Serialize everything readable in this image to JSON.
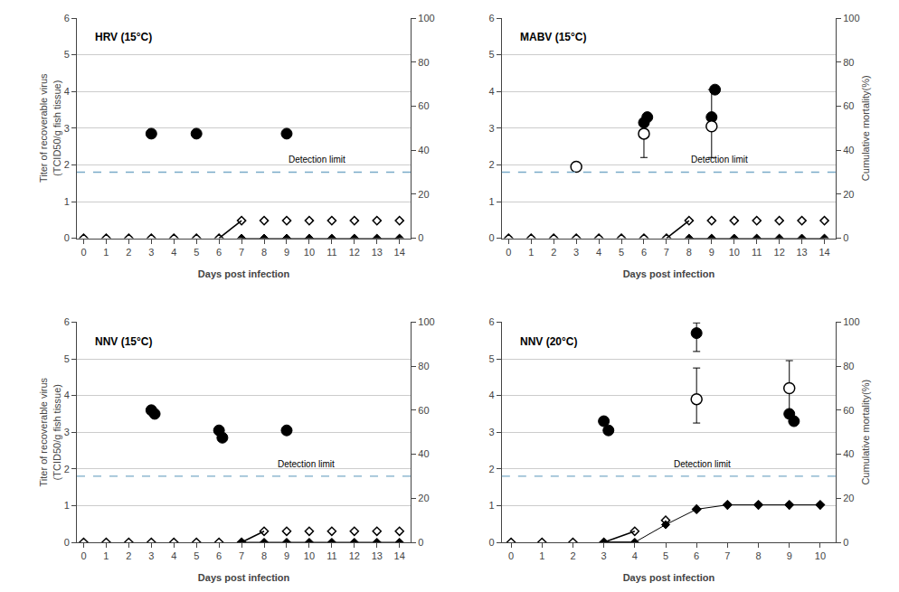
{
  "chart_data": [
    {
      "type": "scatter",
      "title": "HRV (15°C)",
      "xlabel": "Days post infection",
      "ylabel": "Titer of recoverable virus\n(TCID50/g fish tissue)",
      "xlim": [
        -0.3,
        14.5
      ],
      "xticks": [
        0,
        1,
        2,
        3,
        4,
        5,
        6,
        7,
        8,
        9,
        10,
        11,
        12,
        13,
        14
      ],
      "ylim": [
        0,
        6
      ],
      "yticks": [
        0,
        1,
        2,
        3,
        4,
        5,
        6
      ],
      "y2lim": [
        0,
        100
      ],
      "y2ticks": [
        0,
        20,
        40,
        60,
        80,
        100
      ],
      "grid": "y",
      "reference_lines": [
        {
          "y": 1.8,
          "color": "#7aaac8",
          "line_style": "dashed"
        }
      ],
      "annotations": [
        {
          "text": "Detection limit",
          "x": 9.0,
          "y": 1.95
        }
      ],
      "series": [
        {
          "axis": "y2",
          "type": "scatter",
          "marker": "diamond-open",
          "color": "black",
          "x": [
            0,
            1,
            2,
            3,
            4,
            5,
            6,
            7,
            8,
            9,
            10,
            11,
            12,
            13,
            14
          ],
          "values": [
            0,
            0,
            0,
            0,
            0,
            0,
            0,
            8,
            8,
            8,
            8,
            8,
            8,
            8,
            8
          ]
        },
        {
          "axis": "y2",
          "type": "line",
          "color": "black",
          "x": [
            6,
            7
          ],
          "values": [
            0,
            8
          ]
        },
        {
          "axis": "y2",
          "type": "line",
          "marker": "diamond",
          "color": "black",
          "x": [
            7,
            8,
            9,
            10,
            11,
            12,
            13,
            14
          ],
          "values": [
            0,
            0,
            0,
            0,
            0,
            0,
            0,
            0
          ]
        },
        {
          "type": "scatter",
          "marker": "circle",
          "color": "black",
          "x": [
            3,
            5,
            9
          ],
          "values": [
            2.85,
            2.85,
            2.85
          ],
          "yerr_low": [
            0.0,
            0.0,
            0.0
          ],
          "yerr_high": [
            0.0,
            0.0,
            0.0
          ]
        }
      ]
    },
    {
      "type": "scatter",
      "title": "MABV (15°C)",
      "xlabel": "Days post infection",
      "y2label": "Cumulative mortality(%)",
      "xlim": [
        -0.3,
        14.5
      ],
      "xticks": [
        0,
        1,
        2,
        3,
        4,
        5,
        6,
        7,
        8,
        9,
        10,
        11,
        12,
        13,
        14
      ],
      "ylim": [
        0,
        6
      ],
      "yticks": [
        0,
        1,
        2,
        3,
        4,
        5,
        6
      ],
      "y2lim": [
        0,
        100
      ],
      "y2ticks": [
        0,
        20,
        40,
        60,
        80,
        100
      ],
      "grid": "y",
      "reference_lines": [
        {
          "y": 1.8,
          "color": "#7aaac8",
          "line_style": "dashed"
        }
      ],
      "annotations": [
        {
          "text": "Detection limit",
          "x": 8.0,
          "y": 1.95
        }
      ],
      "series": [
        {
          "axis": "y2",
          "type": "scatter",
          "marker": "diamond-open",
          "color": "black",
          "x": [
            0,
            1,
            2,
            3,
            4,
            5,
            6,
            7,
            8,
            9,
            10,
            11,
            12,
            13,
            14
          ],
          "values": [
            0,
            0,
            0,
            0,
            0,
            0,
            0,
            0,
            8,
            8,
            8,
            8,
            8,
            8,
            8
          ]
        },
        {
          "axis": "y2",
          "type": "line",
          "color": "black",
          "x": [
            7,
            8
          ],
          "values": [
            0,
            8
          ]
        },
        {
          "axis": "y2",
          "type": "line",
          "marker": "diamond",
          "color": "black",
          "x": [
            8,
            9,
            10,
            11,
            12,
            13,
            14
          ],
          "values": [
            0,
            0,
            0,
            0,
            0,
            0,
            0
          ]
        },
        {
          "type": "scatter",
          "marker": "circle",
          "color": "black",
          "x": [
            6,
            6.15,
            9,
            9.15
          ],
          "values": [
            3.15,
            3.3,
            3.3,
            4.05
          ],
          "yerr_low": [
            0.0,
            0.0,
            0.0,
            0.0
          ],
          "yerr_high": [
            0.0,
            0.0,
            0.0,
            0.0
          ]
        },
        {
          "type": "scatter",
          "marker": "circle-open",
          "color": "black",
          "x": [
            3,
            6,
            9
          ],
          "values": [
            1.95,
            2.85,
            3.05
          ],
          "yerr_low": [
            0.0,
            0.65,
            0.85
          ],
          "yerr_high": [
            0.0,
            0.0,
            1.0
          ]
        }
      ]
    },
    {
      "type": "scatter",
      "title": "NNV (15°C)",
      "xlabel": "Days post infection",
      "ylabel": "Titer of recoverable virus\n(TCID50/g fish tissue)",
      "xlim": [
        -0.3,
        14.5
      ],
      "xticks": [
        0,
        1,
        2,
        3,
        4,
        5,
        6,
        7,
        8,
        9,
        10,
        11,
        12,
        13,
        14
      ],
      "ylim": [
        0,
        6
      ],
      "yticks": [
        0,
        1,
        2,
        3,
        4,
        5,
        6
      ],
      "y2lim": [
        0,
        100
      ],
      "y2ticks": [
        0,
        20,
        40,
        60,
        80,
        100
      ],
      "grid": "y",
      "reference_lines": [
        {
          "y": 1.8,
          "color": "#7aaac8",
          "line_style": "dashed"
        }
      ],
      "annotations": [
        {
          "text": "Detection limit",
          "x": 8.5,
          "y": 1.95
        }
      ],
      "series": [
        {
          "axis": "y2",
          "type": "scatter",
          "marker": "diamond-open",
          "color": "black",
          "x": [
            0,
            1,
            2,
            3,
            4,
            5,
            6,
            7,
            8,
            9,
            10,
            11,
            12,
            13,
            14
          ],
          "values": [
            0,
            0,
            0,
            0,
            0,
            0,
            0,
            0,
            5,
            5,
            5,
            5,
            5,
            5,
            5
          ]
        },
        {
          "axis": "y2",
          "type": "line",
          "color": "black",
          "x": [
            7,
            8
          ],
          "values": [
            0,
            5
          ]
        },
        {
          "axis": "y2",
          "type": "line",
          "marker": "diamond",
          "color": "black",
          "x": [
            7,
            8,
            9,
            10,
            11,
            12,
            13,
            14
          ],
          "values": [
            0,
            0,
            0,
            0,
            0,
            0,
            0,
            0
          ]
        },
        {
          "type": "scatter",
          "marker": "circle",
          "color": "black",
          "x": [
            3,
            3.15,
            6,
            6.15,
            9
          ],
          "values": [
            3.6,
            3.5,
            3.05,
            2.85,
            3.05
          ],
          "yerr_low": [
            0.0,
            0.0,
            0.0,
            0.0,
            0.0
          ],
          "yerr_high": [
            0.0,
            0.0,
            0.0,
            0.0,
            0.0
          ]
        }
      ]
    },
    {
      "type": "scatter",
      "title": "NNV (20°C)",
      "xlabel": "Days post infection",
      "y2label": "Cumulative mortality(%)",
      "xlim": [
        -0.3,
        10.5
      ],
      "xticks": [
        0,
        1,
        2,
        3,
        4,
        5,
        6,
        7,
        8,
        9,
        10
      ],
      "ylim": [
        0,
        6
      ],
      "yticks": [
        0,
        1,
        2,
        3,
        4,
        5,
        6
      ],
      "y2lim": [
        0,
        100
      ],
      "y2ticks": [
        0,
        20,
        40,
        60,
        80,
        100
      ],
      "grid": "y",
      "reference_lines": [
        {
          "y": 1.8,
          "color": "#7aaac8",
          "line_style": "dashed"
        }
      ],
      "annotations": [
        {
          "text": "Detection limit",
          "x": 5.2,
          "y": 1.95
        }
      ],
      "series": [
        {
          "axis": "y2",
          "type": "scatter",
          "marker": "diamond-open",
          "color": "black",
          "x": [
            0,
            1,
            2,
            3,
            4,
            5,
            6,
            7,
            8,
            9,
            10
          ],
          "values": [
            0,
            0,
            0,
            0,
            5,
            10,
            15,
            17,
            17,
            17,
            17
          ]
        },
        {
          "axis": "y2",
          "type": "line",
          "color": "black",
          "x": [
            3,
            4
          ],
          "values": [
            0,
            5
          ]
        },
        {
          "axis": "y2",
          "type": "line",
          "marker": "diamond",
          "color": "black",
          "x": [
            3,
            4,
            5,
            6,
            7,
            8,
            9,
            10
          ],
          "values": [
            0,
            0,
            8,
            15,
            17,
            17,
            17,
            17
          ]
        },
        {
          "axis": "y2",
          "type": "line",
          "color": "black",
          "x": [
            3,
            4
          ],
          "values": [
            0,
            0
          ]
        },
        {
          "type": "scatter",
          "marker": "circle",
          "color": "black",
          "x": [
            3,
            3.15,
            6,
            9,
            9.15
          ],
          "values": [
            3.3,
            3.05,
            5.7,
            3.5,
            3.3
          ],
          "yerr_low": [
            0.0,
            0.0,
            0.5,
            0.0,
            0.0
          ],
          "yerr_high": [
            0.0,
            0.0,
            0.28,
            0.0,
            0.0
          ]
        },
        {
          "type": "scatter",
          "marker": "circle-open",
          "color": "black",
          "x": [
            6,
            9
          ],
          "values": [
            3.9,
            4.2
          ],
          "yerr_low": [
            0.65,
            0.8
          ],
          "yerr_high": [
            0.85,
            0.75
          ]
        }
      ]
    }
  ]
}
